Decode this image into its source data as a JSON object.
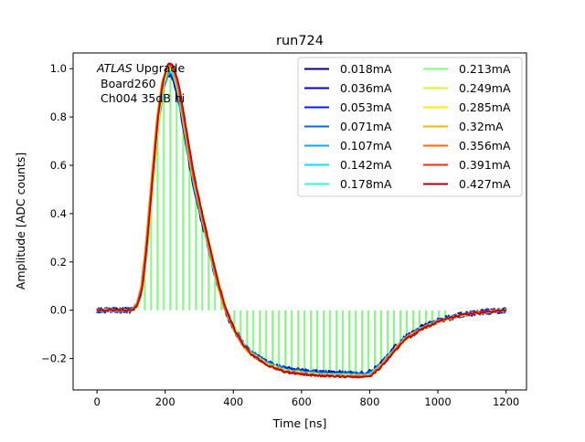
{
  "chart_data": {
    "type": "line",
    "title": "run724",
    "xlabel": "Time [ns]",
    "ylabel": "Amplitude [ADC counts]",
    "xlim": [
      -70,
      1260
    ],
    "ylim": [
      -0.33,
      1.065
    ],
    "x_ticks": [
      0,
      200,
      400,
      600,
      800,
      1000,
      1200
    ],
    "y_ticks": [
      -0.2,
      0.0,
      0.2,
      0.4,
      0.6,
      0.8,
      1.0
    ],
    "x_tick_labels": [
      "0",
      "200",
      "400",
      "600",
      "800",
      "1000",
      "1200"
    ],
    "y_tick_labels": [
      "−0.2",
      "0.0",
      "0.2",
      "0.4",
      "0.6",
      "0.8",
      "1.0"
    ],
    "grid": false,
    "legend_placement": "top-right",
    "legend_columns": 2,
    "annotation": {
      "italic": "ATLAS",
      "line1_rest": " Upgrade",
      "line2": "Board260",
      "line3": "Ch004 35dB hi"
    },
    "pulse_shape": {
      "x": [
        0,
        100,
        115,
        130,
        145,
        160,
        175,
        190,
        205,
        220,
        235,
        250,
        265,
        280,
        300,
        325,
        350,
        375,
        400,
        425,
        450,
        500,
        550,
        600,
        650,
        700,
        750,
        790,
        800,
        830,
        860,
        900,
        950,
        1000,
        1050,
        1100,
        1150,
        1200
      ],
      "y": [
        0.0,
        0.0,
        0.02,
        0.1,
        0.3,
        0.55,
        0.78,
        0.93,
        1.0,
        0.99,
        0.92,
        0.8,
        0.67,
        0.55,
        0.42,
        0.27,
        0.12,
        0.0,
        -0.08,
        -0.14,
        -0.18,
        -0.225,
        -0.25,
        -0.26,
        -0.265,
        -0.268,
        -0.27,
        -0.27,
        -0.265,
        -0.23,
        -0.18,
        -0.12,
        -0.075,
        -0.045,
        -0.025,
        -0.012,
        -0.005,
        0.0
      ]
    },
    "series": [
      {
        "name": "0.018mA",
        "color": "#00007f"
      },
      {
        "name": "0.036mA",
        "color": "#0000d5"
      },
      {
        "name": "0.053mA",
        "color": "#001cff"
      },
      {
        "name": "0.071mA",
        "color": "#0064ff"
      },
      {
        "name": "0.107mA",
        "color": "#00a8ff"
      },
      {
        "name": "0.142mA",
        "color": "#00e4f8"
      },
      {
        "name": "0.178mA",
        "color": "#2cffca"
      },
      {
        "name": "0.213mA",
        "color": "#7dff7a"
      },
      {
        "name": "0.249mA",
        "color": "#caff2c"
      },
      {
        "name": "0.285mA",
        "color": "#ffea00"
      },
      {
        "name": "0.32mA",
        "color": "#ffb000"
      },
      {
        "name": "0.356mA",
        "color": "#ff6800"
      },
      {
        "name": "0.391mA",
        "color": "#ff2900"
      },
      {
        "name": "0.427mA",
        "color": "#b20000"
      }
    ],
    "sampled_series": {
      "name": "0.213mA",
      "x_start": 140,
      "x_step": 18.75,
      "x_end": 1030
    }
  }
}
